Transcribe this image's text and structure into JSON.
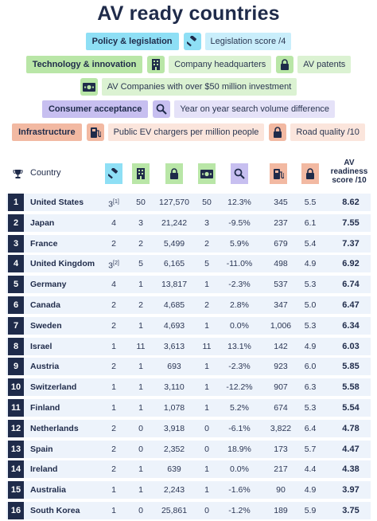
{
  "title": "AV ready countries",
  "legend": {
    "policy": "Policy & legislation",
    "legislation_score": "Legislation score /4",
    "technology": "Technology & innovation",
    "company_hq": "Company headquarters",
    "av_patents": "AV patents",
    "av_companies": "AV Companies with over $50 million investment",
    "consumer": "Consumer acceptance",
    "search_volume": "Year on year search volume difference",
    "infrastructure": "Infrastructure",
    "ev_chargers": "Public EV chargers per million people",
    "road_quality": "Road quality /10"
  },
  "table": {
    "country_header": "Country",
    "score_header_lines": [
      "AV",
      "readiness",
      "score /10"
    ],
    "rows": [
      {
        "rank": "1",
        "country": "United States",
        "legislation": "3",
        "leg_note": "[1]",
        "hq": "50",
        "patents": "127,570",
        "companies": "50",
        "search": "12.3%",
        "chargers": "345",
        "road": "5.5",
        "score": "8.62"
      },
      {
        "rank": "2",
        "country": "Japan",
        "legislation": "4",
        "leg_note": "",
        "hq": "3",
        "patents": "21,242",
        "companies": "3",
        "search": "-9.5%",
        "chargers": "237",
        "road": "6.1",
        "score": "7.55"
      },
      {
        "rank": "3",
        "country": "France",
        "legislation": "2",
        "leg_note": "",
        "hq": "2",
        "patents": "5,499",
        "companies": "2",
        "search": "5.9%",
        "chargers": "679",
        "road": "5.4",
        "score": "7.37"
      },
      {
        "rank": "4",
        "country": "United Kingdom",
        "legislation": "3",
        "leg_note": "[2]",
        "hq": "5",
        "patents": "6,165",
        "companies": "5",
        "search": "-11.0%",
        "chargers": "498",
        "road": "4.9",
        "score": "6.92"
      },
      {
        "rank": "5",
        "country": "Germany",
        "legislation": "4",
        "leg_note": "",
        "hq": "1",
        "patents": "13,817",
        "companies": "1",
        "search": "-2.3%",
        "chargers": "537",
        "road": "5.3",
        "score": "6.74"
      },
      {
        "rank": "6",
        "country": "Canada",
        "legislation": "2",
        "leg_note": "",
        "hq": "2",
        "patents": "4,685",
        "companies": "2",
        "search": "2.8%",
        "chargers": "347",
        "road": "5.0",
        "score": "6.47"
      },
      {
        "rank": "7",
        "country": "Sweden",
        "legislation": "2",
        "leg_note": "",
        "hq": "1",
        "patents": "4,693",
        "companies": "1",
        "search": "0.0%",
        "chargers": "1,006",
        "road": "5.3",
        "score": "6.34"
      },
      {
        "rank": "8",
        "country": "Israel",
        "legislation": "1",
        "leg_note": "",
        "hq": "11",
        "patents": "3,613",
        "companies": "11",
        "search": "13.1%",
        "chargers": "142",
        "road": "4.9",
        "score": "6.03"
      },
      {
        "rank": "9",
        "country": "Austria",
        "legislation": "2",
        "leg_note": "",
        "hq": "1",
        "patents": "693",
        "companies": "1",
        "search": "-2.3%",
        "chargers": "923",
        "road": "6.0",
        "score": "5.85"
      },
      {
        "rank": "10",
        "country": "Switzerland",
        "legislation": "1",
        "leg_note": "",
        "hq": "1",
        "patents": "3,110",
        "companies": "1",
        "search": "-12.2%",
        "chargers": "907",
        "road": "6.3",
        "score": "5.58"
      },
      {
        "rank": "11",
        "country": "Finland",
        "legislation": "1",
        "leg_note": "",
        "hq": "1",
        "patents": "1,078",
        "companies": "1",
        "search": "5.2%",
        "chargers": "674",
        "road": "5.3",
        "score": "5.54"
      },
      {
        "rank": "12",
        "country": "Netherlands",
        "legislation": "2",
        "leg_note": "",
        "hq": "0",
        "patents": "3,918",
        "companies": "0",
        "search": "-6.1%",
        "chargers": "3,822",
        "road": "6.4",
        "score": "4.78"
      },
      {
        "rank": "13",
        "country": "Spain",
        "legislation": "2",
        "leg_note": "",
        "hq": "0",
        "patents": "2,352",
        "companies": "0",
        "search": "18.9%",
        "chargers": "173",
        "road": "5.7",
        "score": "4.47"
      },
      {
        "rank": "14",
        "country": "Ireland",
        "legislation": "2",
        "leg_note": "",
        "hq": "1",
        "patents": "639",
        "companies": "1",
        "search": "0.0%",
        "chargers": "217",
        "road": "4.4",
        "score": "4.38"
      },
      {
        "rank": "15",
        "country": "Australia",
        "legislation": "1",
        "leg_note": "",
        "hq": "1",
        "patents": "2,243",
        "companies": "1",
        "search": "-1.6%",
        "chargers": "90",
        "road": "4.9",
        "score": "3.97"
      },
      {
        "rank": "16",
        "country": "South Korea",
        "legislation": "1",
        "leg_note": "",
        "hq": "0",
        "patents": "25,861",
        "companies": "0",
        "search": "-1.2%",
        "chargers": "189",
        "road": "5.9",
        "score": "3.75"
      }
    ]
  }
}
